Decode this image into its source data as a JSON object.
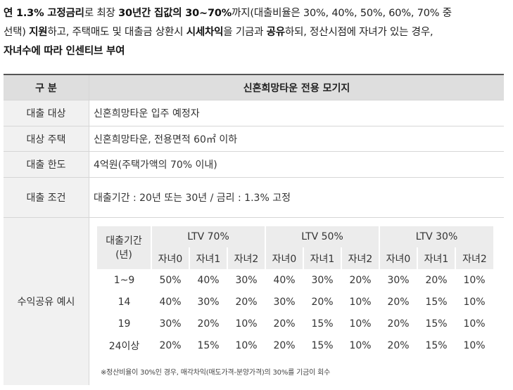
{
  "intro": {
    "line1": [
      {
        "t": "연 1.3% 고정금리",
        "b": true
      },
      {
        "t": "로 최장 ",
        "b": false
      },
      {
        "t": "30년간 집값의 30~70%",
        "b": true
      },
      {
        "t": "까지(대출비율은 30%, 40%, 50%, 60%, 70% 중",
        "b": false
      }
    ],
    "line2": [
      {
        "t": "선택) ",
        "b": false
      },
      {
        "t": "지원",
        "b": true
      },
      {
        "t": "하고, 주택매도 및 대출금 상환시 ",
        "b": false
      },
      {
        "t": "시세차익",
        "b": true
      },
      {
        "t": "을 기금과 ",
        "b": false
      },
      {
        "t": "공유",
        "b": true
      },
      {
        "t": "하되, 정산시점에 자녀가 있는 경우,",
        "b": false
      }
    ],
    "line3": [
      {
        "t": "자녀수에 따라 인센티브 부여",
        "b": true
      }
    ]
  },
  "table": {
    "header": {
      "label": "구 분",
      "value": "신혼희망타운 전용 모기지"
    },
    "rows": [
      {
        "label": "대출 대상",
        "value": "신혼희망타운 입주 예정자"
      },
      {
        "label": "대상 주택",
        "value": "신혼희망타운, 전용면적 60㎡ 이하"
      },
      {
        "label": "대출 한도",
        "value": "4억원(주택가액의 70% 이내)"
      },
      {
        "label": "대출 조건",
        "value": "대출기간 : 20년 또는 30년 / 금리 : 1.3% 고정"
      }
    ],
    "share": {
      "label": "수익공유 예시",
      "period_header": "대출기간\n(년)",
      "groups": [
        "LTV 70%",
        "LTV 50%",
        "LTV 30%"
      ],
      "sub_headers": [
        "자녀0",
        "자녀1",
        "자녀2"
      ],
      "rows": [
        {
          "period": "1~9",
          "values": [
            "50%",
            "40%",
            "30%",
            "40%",
            "30%",
            "20%",
            "30%",
            "20%",
            "10%"
          ]
        },
        {
          "period": "14",
          "values": [
            "40%",
            "30%",
            "20%",
            "30%",
            "20%",
            "10%",
            "20%",
            "15%",
            "10%"
          ]
        },
        {
          "period": "19",
          "values": [
            "30%",
            "20%",
            "10%",
            "20%",
            "15%",
            "10%",
            "20%",
            "15%",
            "10%"
          ]
        },
        {
          "period": "24이상",
          "values": [
            "20%",
            "15%",
            "10%",
            "20%",
            "15%",
            "10%",
            "20%",
            "15%",
            "10%"
          ]
        }
      ],
      "note": "※정산비율이 30%인 경우, 매각차익(매도가격-분양가격)의 30%를 기금이 회수"
    }
  }
}
